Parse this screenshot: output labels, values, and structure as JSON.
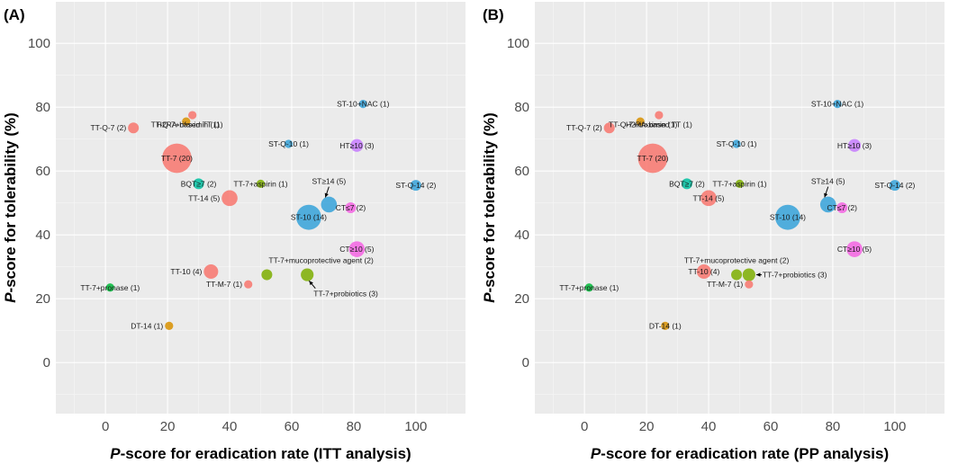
{
  "chart_data": [
    {
      "type": "scatter",
      "panel_label": "(A)",
      "xlabel": "P-score for eradication rate (ITT analysis)",
      "ylabel": "P-score for tolerability (%)",
      "xlim": [
        -16,
        116
      ],
      "ylim": [
        -16,
        113
      ],
      "xticks": [
        0,
        20,
        40,
        60,
        80,
        100
      ],
      "yticks": [
        0,
        20,
        40,
        60,
        80,
        100
      ],
      "grid": true,
      "points": [
        {
          "label": "TT-7 (20)",
          "x": 23,
          "y": 64,
          "n": 20,
          "color": "#f8766d",
          "anchor": "middle",
          "lx": 0,
          "ly": 0
        },
        {
          "label": "TT-Q-7 (2)",
          "x": 9,
          "y": 73.5,
          "n": 2,
          "color": "#f8766d",
          "anchor": "end",
          "lx": -2,
          "ly": 0
        },
        {
          "label": "H2RA-based  TT (1)",
          "x": 28,
          "y": 77.5,
          "n": 1,
          "color": "#f8766d",
          "anchor": "middle",
          "lx": -3,
          "ly": -3
        },
        {
          "label": "TT-Q-7+rifaximin (1)",
          "x": 26,
          "y": 75.5,
          "n": 1,
          "color": "#d89000",
          "anchor": "middle",
          "lx": -1,
          "ly": -1
        },
        {
          "label": "TT-14 (5)",
          "x": 40,
          "y": 51.5,
          "n": 5,
          "color": "#f8766d",
          "anchor": "end",
          "lx": -2,
          "ly": 0
        },
        {
          "label": "TT-10 (4)",
          "x": 34,
          "y": 28.5,
          "n": 4,
          "color": "#f8766d",
          "anchor": "end",
          "lx": -2,
          "ly": 0
        },
        {
          "label": "TT-M-7 (1)",
          "x": 46,
          "y": 24.5,
          "n": 1,
          "color": "#f8766d",
          "anchor": "end",
          "lx": -2,
          "ly": 0
        },
        {
          "label": "TT-7+mucoprotective agent (2)",
          "x": 52,
          "y": 27.5,
          "n": 2,
          "color": "#7cae00",
          "anchor": "start",
          "lx": -4,
          "ly": 4.5
        },
        {
          "label": "TT-7+probiotics (3)",
          "x": 65,
          "y": 27.5,
          "n": 3,
          "color": "#7cae00",
          "anchor": "start",
          "lx": 0,
          "ly": -5.5,
          "arrow": true
        },
        {
          "label": "TT-7+aspirin (1)",
          "x": 50,
          "y": 56,
          "n": 1,
          "color": "#7cae00",
          "anchor": "middle",
          "lx": 0,
          "ly": 0
        },
        {
          "label": "TT-7+pronase (1)",
          "x": 1.5,
          "y": 23.5,
          "n": 1,
          "color": "#00ba38",
          "anchor": "middle",
          "lx": 0,
          "ly": 0
        },
        {
          "label": "BQT≥7 (2)",
          "x": 30,
          "y": 56,
          "n": 2,
          "color": "#00bfa0",
          "anchor": "middle",
          "lx": 0,
          "ly": 0
        },
        {
          "label": "DT-14 (1)",
          "x": 20.5,
          "y": 11.5,
          "n": 1,
          "color": "#d89000",
          "anchor": "end",
          "lx": -2,
          "ly": 0
        },
        {
          "label": "ST-Q-10 (1)",
          "x": 59,
          "y": 68.5,
          "n": 1,
          "color": "#35a2d9",
          "anchor": "middle",
          "lx": 0,
          "ly": 0
        },
        {
          "label": "ST-10+NAC (1)",
          "x": 83,
          "y": 81,
          "n": 1,
          "color": "#35a2d9",
          "anchor": "middle",
          "lx": 0,
          "ly": 0
        },
        {
          "label": "ST-10 (14)",
          "x": 65.5,
          "y": 45.5,
          "n": 14,
          "color": "#35a2d9",
          "anchor": "middle",
          "lx": 0,
          "ly": 0
        },
        {
          "label": "ST≥14 (5)",
          "x": 72,
          "y": 49.5,
          "n": 5,
          "color": "#35a2d9",
          "anchor": "middle",
          "lx": 0,
          "ly": 5.5,
          "arrow": true
        },
        {
          "label": "ST-Q-14 (2)",
          "x": 100,
          "y": 55.5,
          "n": 2,
          "color": "#35a2d9",
          "anchor": "middle",
          "lx": 0,
          "ly": 0
        },
        {
          "label": "HT≥10 (3)",
          "x": 81,
          "y": 68,
          "n": 3,
          "color": "#c77cff",
          "anchor": "middle",
          "lx": 0,
          "ly": 0
        },
        {
          "label": "CT≤7 (2)",
          "x": 79,
          "y": 48.5,
          "n": 2,
          "color": "#f564e3",
          "anchor": "middle",
          "lx": 0,
          "ly": 0
        },
        {
          "label": "CT≥10 (5)",
          "x": 81,
          "y": 35.5,
          "n": 5,
          "color": "#f564e3",
          "anchor": "middle",
          "lx": 0,
          "ly": 0
        }
      ]
    },
    {
      "type": "scatter",
      "panel_label": "(B)",
      "xlabel": "P-score for eradication rate (PP analysis)",
      "ylabel": "P-score for tolerability (%)",
      "xlim": [
        -16,
        116
      ],
      "ylim": [
        -16,
        113
      ],
      "xticks": [
        0,
        20,
        40,
        60,
        80,
        100
      ],
      "yticks": [
        0,
        20,
        40,
        60,
        80,
        100
      ],
      "grid": true,
      "points": [
        {
          "label": "TT-7 (20)",
          "x": 22,
          "y": 64,
          "n": 20,
          "color": "#f8766d",
          "anchor": "middle",
          "lx": 0,
          "ly": 0
        },
        {
          "label": "TT-Q-7 (2)",
          "x": 8,
          "y": 73.5,
          "n": 2,
          "color": "#f8766d",
          "anchor": "end",
          "lx": -2,
          "ly": 0
        },
        {
          "label": "H2RA-based  TT (1)",
          "x": 24,
          "y": 77.5,
          "n": 1,
          "color": "#f8766d",
          "anchor": "middle",
          "lx": 0,
          "ly": -3
        },
        {
          "label": "TT-Q-7+rifaximin (1)",
          "x": 18,
          "y": 75.5,
          "n": 1,
          "color": "#d89000",
          "anchor": "middle",
          "lx": 3,
          "ly": -1
        },
        {
          "label": "TT-14 (5)",
          "x": 40,
          "y": 51.5,
          "n": 5,
          "color": "#f8766d",
          "anchor": "middle",
          "lx": 0,
          "ly": 0
        },
        {
          "label": "TT-10 (4)",
          "x": 38.5,
          "y": 28.5,
          "n": 4,
          "color": "#f8766d",
          "anchor": "middle",
          "lx": 0,
          "ly": 0
        },
        {
          "label": "TT-M-7 (1)",
          "x": 53,
          "y": 24.5,
          "n": 1,
          "color": "#f8766d",
          "anchor": "end",
          "lx": -2,
          "ly": 0
        },
        {
          "label": "TT-7+mucoprotective agent (2)",
          "x": 49,
          "y": 27.5,
          "n": 2,
          "color": "#7cae00",
          "anchor": "middle",
          "lx": 0,
          "ly": 4.5
        },
        {
          "label": "TT-7+probiotics (3)",
          "x": 53,
          "y": 27.5,
          "n": 3,
          "color": "#7cae00",
          "anchor": "start",
          "lx": 8,
          "ly": 0,
          "arrow": true
        },
        {
          "label": "TT-7+aspirin (1)",
          "x": 50,
          "y": 56,
          "n": 1,
          "color": "#7cae00",
          "anchor": "middle",
          "lx": 0,
          "ly": 0
        },
        {
          "label": "TT-7+pronase (1)",
          "x": 1.5,
          "y": 23.5,
          "n": 1,
          "color": "#00ba38",
          "anchor": "middle",
          "lx": 0,
          "ly": 0
        },
        {
          "label": "BQT≥7 (2)",
          "x": 33,
          "y": 56,
          "n": 2,
          "color": "#00bfa0",
          "anchor": "middle",
          "lx": 0,
          "ly": 0
        },
        {
          "label": "DT-14 (1)",
          "x": 26,
          "y": 11.5,
          "n": 1,
          "color": "#d89000",
          "anchor": "middle",
          "lx": 0,
          "ly": 0
        },
        {
          "label": "ST-Q-10 (1)",
          "x": 49,
          "y": 68.5,
          "n": 1,
          "color": "#35a2d9",
          "anchor": "middle",
          "lx": 0,
          "ly": 0
        },
        {
          "label": "ST-10+NAC (1)",
          "x": 81.5,
          "y": 81,
          "n": 1,
          "color": "#35a2d9",
          "anchor": "middle",
          "lx": 0,
          "ly": 0
        },
        {
          "label": "ST-10 (14)",
          "x": 65.5,
          "y": 45.5,
          "n": 14,
          "color": "#35a2d9",
          "anchor": "middle",
          "lx": 0,
          "ly": 0
        },
        {
          "label": "ST≥14 (5)",
          "x": 78.5,
          "y": 49.5,
          "n": 5,
          "color": "#35a2d9",
          "anchor": "middle",
          "lx": 0,
          "ly": 5.5,
          "arrow": true
        },
        {
          "label": "ST-Q-14 (2)",
          "x": 100,
          "y": 55.5,
          "n": 2,
          "color": "#35a2d9",
          "anchor": "middle",
          "lx": 0,
          "ly": 0
        },
        {
          "label": "HT≥10 (3)",
          "x": 87,
          "y": 68,
          "n": 3,
          "color": "#c77cff",
          "anchor": "middle",
          "lx": 0,
          "ly": 0
        },
        {
          "label": "CT≤7 (2)",
          "x": 83,
          "y": 48.5,
          "n": 2,
          "color": "#f564e3",
          "anchor": "middle",
          "lx": 0,
          "ly": 0
        },
        {
          "label": "CT≥10 (5)",
          "x": 87,
          "y": 35.5,
          "n": 5,
          "color": "#f564e3",
          "anchor": "middle",
          "lx": 0,
          "ly": 0
        }
      ]
    }
  ]
}
